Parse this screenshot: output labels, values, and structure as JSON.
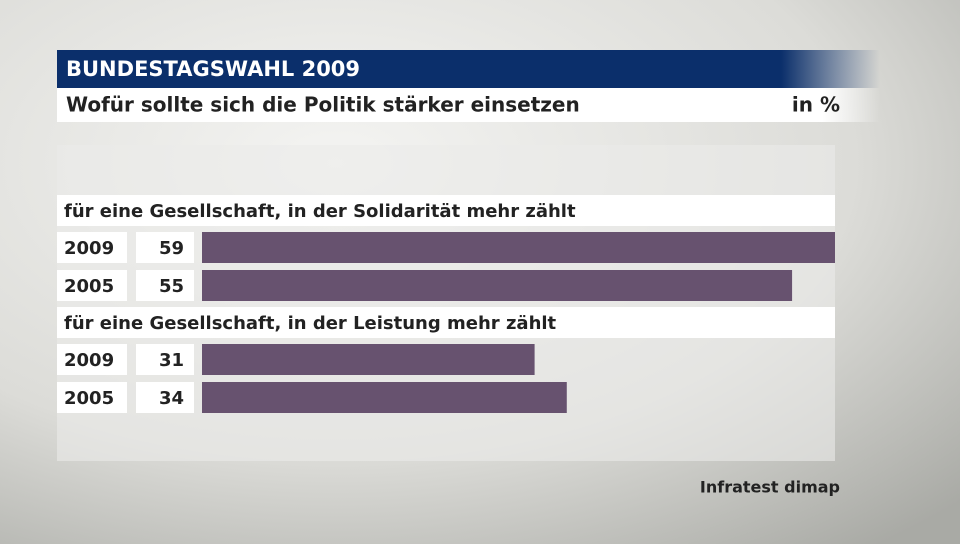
{
  "chart_data": {
    "type": "bar",
    "title": "BUNDESTAGSWAHL 2009",
    "subtitle": "Wofür sollte sich die Politik stärker einsetzen",
    "unit": "in %",
    "source": "Infratest dimap",
    "color": "#67526f",
    "groups": [
      {
        "label": "für eine Gesellschaft, in der Solidarität mehr zählt",
        "categories": [
          "2009",
          "2005"
        ],
        "values": [
          59,
          55
        ]
      },
      {
        "label": "für eine Gesellschaft, in der Leistung mehr zählt",
        "categories": [
          "2009",
          "2005"
        ],
        "values": [
          31,
          34
        ]
      }
    ]
  }
}
